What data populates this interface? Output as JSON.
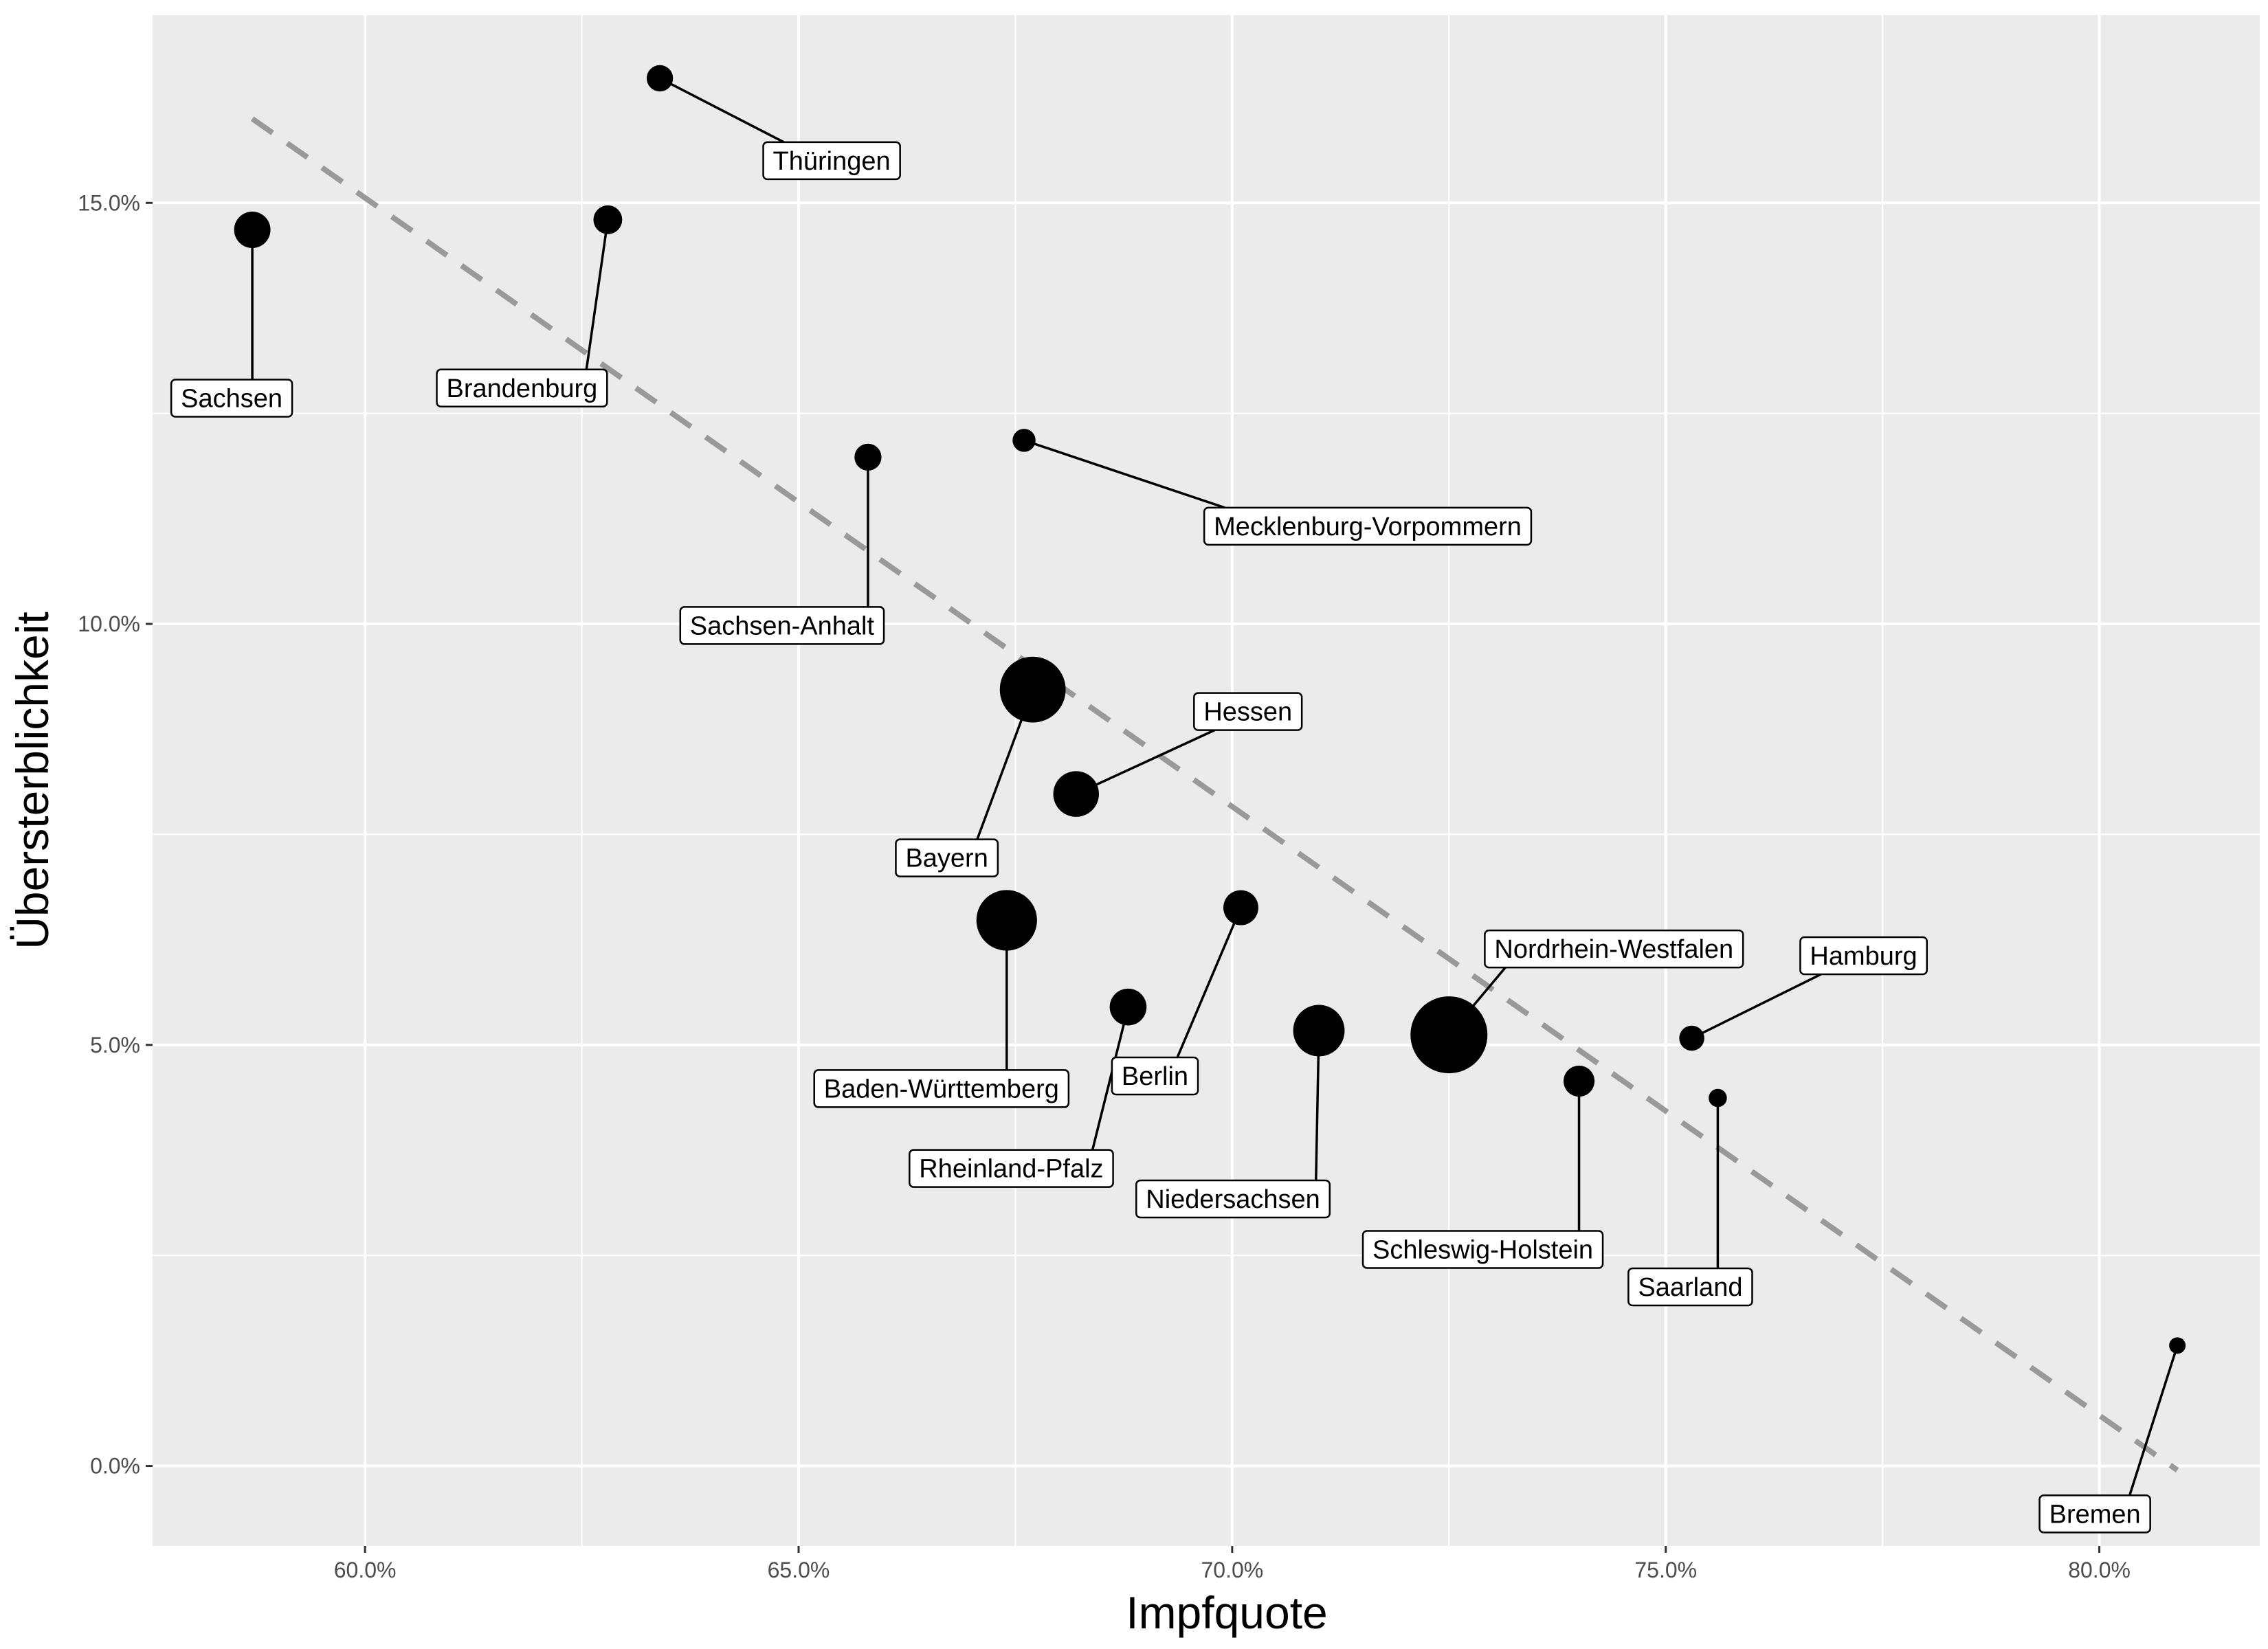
{
  "chart_data": {
    "type": "scatter",
    "title": "",
    "xlabel": "Impfquote",
    "ylabel": "Übersterblichkeit",
    "xlim": [
      0.5755,
      0.8185
    ],
    "ylim": [
      -0.0095,
      0.1723
    ],
    "x_ticks": [
      0.6,
      0.65,
      0.7,
      0.75,
      0.8
    ],
    "x_tick_labels": [
      "60.0%",
      "65.0%",
      "70.0%",
      "75.0%",
      "80.0%"
    ],
    "y_ticks": [
      0.0,
      0.05,
      0.1,
      0.15
    ],
    "y_tick_labels": [
      "0.0%",
      "5.0%",
      "10.0%",
      "15.0%"
    ],
    "grid": true,
    "background": "#ebebeb",
    "point_color": "#000000",
    "trend_line": {
      "color": "#999999",
      "style": "dashed",
      "x": [
        0.587,
        0.809
      ],
      "y": [
        0.16,
        -0.0005
      ]
    },
    "points": [
      {
        "label": "Sachsen",
        "x": 0.587,
        "y": 0.1468,
        "size": 4.0
      },
      {
        "label": "Thüringen",
        "x": 0.634,
        "y": 0.1648,
        "size": 2.1
      },
      {
        "label": "Brandenburg",
        "x": 0.628,
        "y": 0.148,
        "size": 2.5
      },
      {
        "label": "Sachsen-Anhalt",
        "x": 0.658,
        "y": 0.1198,
        "size": 2.2
      },
      {
        "label": "Mecklenburg-Vorpommern",
        "x": 0.676,
        "y": 0.1218,
        "size": 1.6
      },
      {
        "label": "Bayern",
        "x": 0.677,
        "y": 0.0922,
        "size": 13.1
      },
      {
        "label": "Hessen",
        "x": 0.682,
        "y": 0.0798,
        "size": 6.3
      },
      {
        "label": "Baden-Württemberg",
        "x": 0.674,
        "y": 0.0648,
        "size": 11.1
      },
      {
        "label": "Rheinland-Pfalz",
        "x": 0.688,
        "y": 0.0545,
        "size": 4.1
      },
      {
        "label": "Berlin",
        "x": 0.701,
        "y": 0.0663,
        "size": 3.7
      },
      {
        "label": "Niedersachsen",
        "x": 0.71,
        "y": 0.0517,
        "size": 8.0
      },
      {
        "label": "Nordrhein-Westfalen",
        "x": 0.725,
        "y": 0.0512,
        "size": 17.9
      },
      {
        "label": "Schleswig-Holstein",
        "x": 0.74,
        "y": 0.0457,
        "size": 2.9
      },
      {
        "label": "Hamburg",
        "x": 0.753,
        "y": 0.0508,
        "size": 1.9
      },
      {
        "label": "Saarland",
        "x": 0.756,
        "y": 0.0437,
        "size": 1.0
      },
      {
        "label": "Bremen",
        "x": 0.809,
        "y": 0.0143,
        "size": 0.7
      }
    ]
  }
}
